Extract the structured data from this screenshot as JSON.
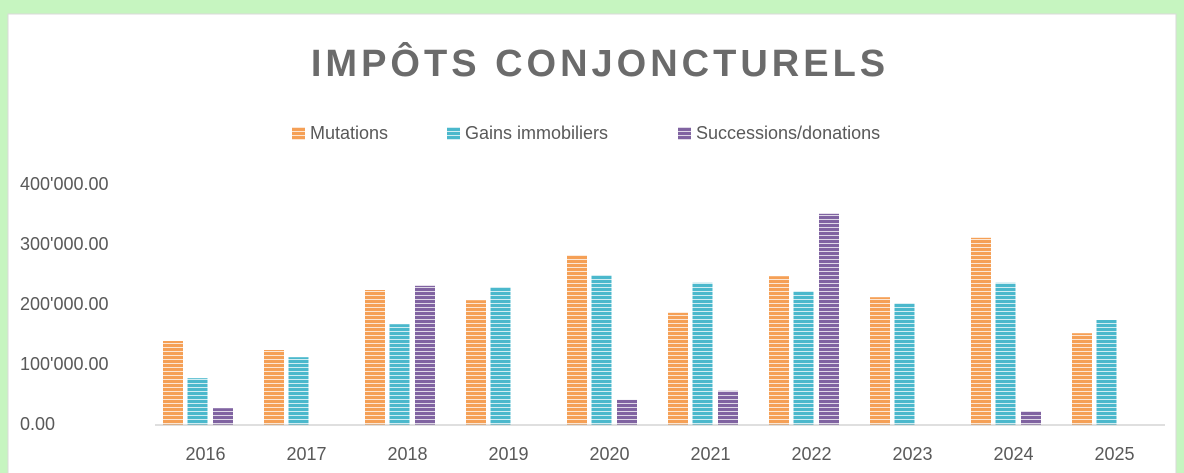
{
  "chart_data": {
    "type": "bar",
    "title": "IMPÔTS CONJONCTURELS",
    "categories": [
      "2016",
      "2017",
      "2018",
      "2019",
      "2020",
      "2021",
      "2022",
      "2023",
      "2024",
      "2025"
    ],
    "series": [
      {
        "name": "Mutations",
        "color": "#f5a056",
        "values": [
          140000,
          125000,
          225000,
          208000,
          283000,
          187000,
          248000,
          213000,
          312000,
          153000
        ]
      },
      {
        "name": "Gains immobiliers",
        "color": "#4bb8cc",
        "values": [
          78000,
          113000,
          168000,
          230000,
          250000,
          237000,
          223000,
          203000,
          237000,
          175000
        ]
      },
      {
        "name": "Successions/donations",
        "color": "#8063a1",
        "values": [
          28000,
          0,
          232000,
          0,
          42000,
          57000,
          352000,
          0,
          23000,
          0
        ]
      }
    ],
    "ylim": [
      0,
      400000
    ],
    "yticks": [
      {
        "value": 0,
        "label": "0.00"
      },
      {
        "value": 100000,
        "label": "100'000.00"
      },
      {
        "value": 200000,
        "label": "200'000.00"
      },
      {
        "value": 300000,
        "label": "300'000.00"
      },
      {
        "value": 400000,
        "label": "400'000.00"
      }
    ],
    "grid": false,
    "legend": "top"
  }
}
